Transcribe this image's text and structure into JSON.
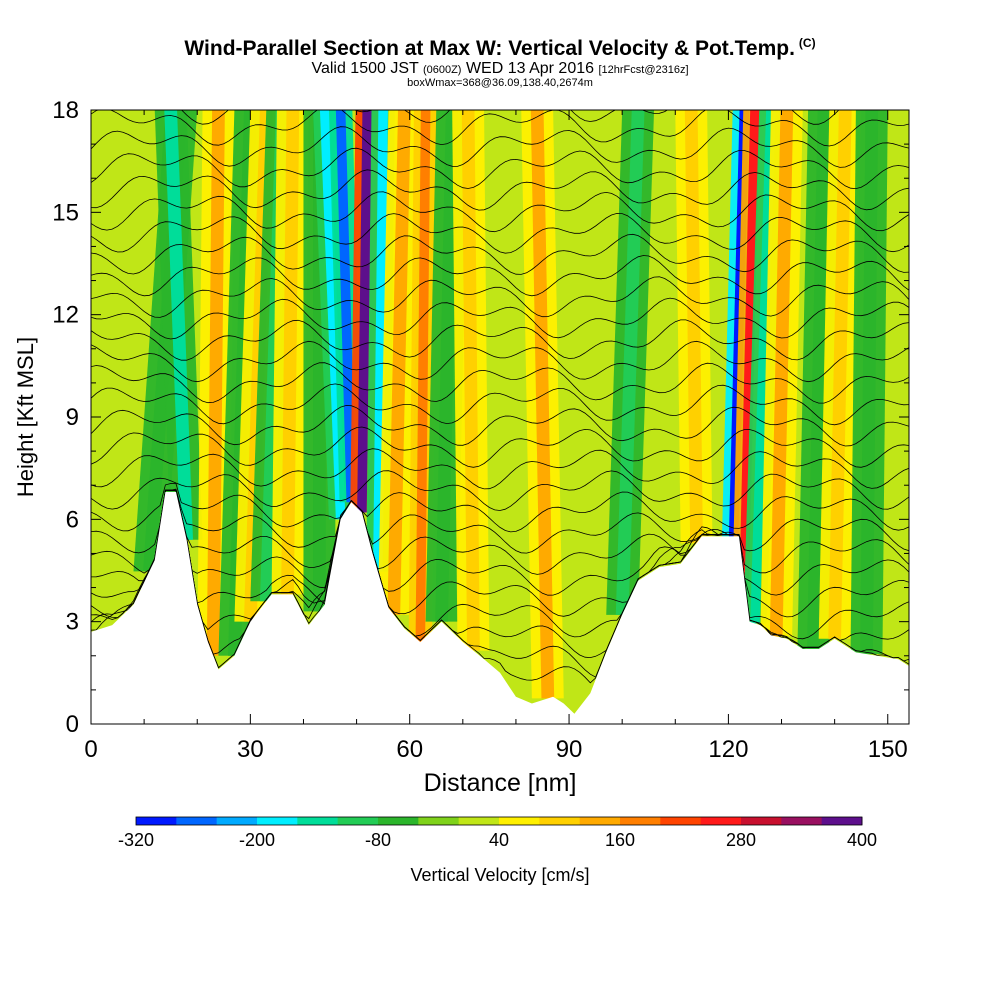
{
  "header": {
    "title_main": "Wind-Parallel Section at Max W: Vertical Velocity & Pot.Temp.",
    "title_mark": "(C)",
    "subtitle_valid": "Valid 1500 JST",
    "subtitle_z": "(0600Z)",
    "subtitle_day": "WED 13 Apr 2016",
    "subtitle_fcst": "[12hrFcst@2316z]",
    "boxinfo": "boxWmax=368@36.09,138.40,2674m"
  },
  "chart_data": {
    "type": "heatmap",
    "title": "Wind-Parallel Section at Max W: Vertical Velocity & Pot.Temp.",
    "xlabel": "Distance [nm]",
    "ylabel": "Height [Kft MSL]",
    "xlim": [
      0,
      154
    ],
    "ylim": [
      0,
      18
    ],
    "x_ticks": [
      0,
      30,
      60,
      90,
      120,
      150
    ],
    "y_ticks": [
      0,
      3,
      6,
      9,
      12,
      15,
      18
    ],
    "x_ticks_labels": [
      "0",
      "30",
      "60",
      "90",
      "120",
      "150"
    ],
    "y_ticks_labels": [
      "0",
      "3",
      "6",
      "9",
      "12",
      "15",
      "18"
    ],
    "terrain_profile": {
      "x": [
        0,
        4,
        8,
        12,
        14,
        16,
        18,
        20,
        22,
        24,
        27,
        30,
        34,
        38,
        41,
        44,
        47,
        49,
        51,
        53,
        56,
        59,
        62,
        66,
        70,
        74,
        77,
        80,
        83,
        85,
        87,
        89,
        91,
        94,
        97,
        100,
        103,
        107,
        111,
        115,
        118,
        120,
        122,
        124,
        126,
        128,
        131,
        134,
        137,
        140,
        144,
        148,
        152,
        154
      ],
      "height_kft": [
        2.7,
        2.9,
        3.5,
        4.8,
        6.8,
        6.8,
        5.4,
        3.5,
        2.4,
        1.6,
        2.0,
        3.0,
        3.8,
        3.8,
        2.9,
        3.5,
        6.0,
        6.5,
        6.2,
        5.0,
        3.4,
        2.8,
        2.4,
        3.0,
        2.4,
        1.9,
        1.5,
        0.8,
        0.6,
        0.7,
        0.8,
        0.6,
        0.3,
        0.9,
        2.1,
        3.2,
        4.2,
        4.6,
        4.7,
        5.5,
        5.5,
        5.5,
        5.5,
        3.0,
        2.9,
        2.6,
        2.5,
        2.2,
        2.2,
        2.5,
        2.1,
        2.0,
        1.9,
        1.7
      ]
    },
    "vertical_velocity_bands": [
      {
        "x_base": 11,
        "x_top": 17,
        "w": -80
      },
      {
        "x_base": 18,
        "x_top": 15,
        "w": -130
      },
      {
        "x_base": 23,
        "x_top": 24,
        "w": 130
      },
      {
        "x_base": 27,
        "x_top": 30,
        "w": -80
      },
      {
        "x_base": 30,
        "x_top": 33,
        "w": 100
      },
      {
        "x_base": 33,
        "x_top": 36,
        "w": -100
      },
      {
        "x_base": 37,
        "x_top": 38,
        "w": 100
      },
      {
        "x_base": 43,
        "x_top": 43,
        "w": -80
      },
      {
        "x_base": 47,
        "x_top": 44,
        "w": -180
      },
      {
        "x_base": 49,
        "x_top": 47,
        "w": -280
      },
      {
        "x_base": 51,
        "x_top": 52,
        "w": 368
      },
      {
        "x_base": 54,
        "x_top": 55,
        "w": -180
      },
      {
        "x_base": 57,
        "x_top": 59,
        "w": 120
      },
      {
        "x_base": 62,
        "x_top": 63,
        "w": 160
      },
      {
        "x_base": 66,
        "x_top": 68,
        "w": -80
      },
      {
        "x_base": 72,
        "x_top": 71,
        "w": 80
      },
      {
        "x_base": 86,
        "x_top": 84,
        "w": 130
      },
      {
        "x_base": 100,
        "x_top": 103,
        "w": -110
      },
      {
        "x_base": 114,
        "x_top": 113,
        "w": 80
      },
      {
        "x_base": 121,
        "x_top": 123,
        "w": -300
      },
      {
        "x_base": 123,
        "x_top": 125,
        "w": 260
      },
      {
        "x_base": 125,
        "x_top": 128,
        "w": -160
      },
      {
        "x_base": 129,
        "x_top": 131,
        "w": 140
      },
      {
        "x_base": 136,
        "x_top": 138,
        "w": -80
      },
      {
        "x_base": 140,
        "x_top": 142,
        "w": 100
      },
      {
        "x_base": 146,
        "x_top": 147,
        "w": -80
      }
    ],
    "vertical_velocity_max": 368,
    "theta_contour_count": 28,
    "colorbar": {
      "label": "Vertical Velocity [cm/s]",
      "min": -320,
      "max": 400,
      "step": 40,
      "tick_labels": [
        "-320",
        "-200",
        "-80",
        "40",
        "160",
        "280",
        "400"
      ],
      "colors": [
        "#0019ff",
        "#0066ff",
        "#00aaff",
        "#00eeff",
        "#00dd99",
        "#22cc55",
        "#2bb52b",
        "#7fd21a",
        "#c0e617",
        "#fff000",
        "#ffd000",
        "#ffaa00",
        "#ff7f00",
        "#ff4400",
        "#ff1a1a",
        "#c8102e",
        "#991060",
        "#5d0f8c"
      ]
    }
  }
}
